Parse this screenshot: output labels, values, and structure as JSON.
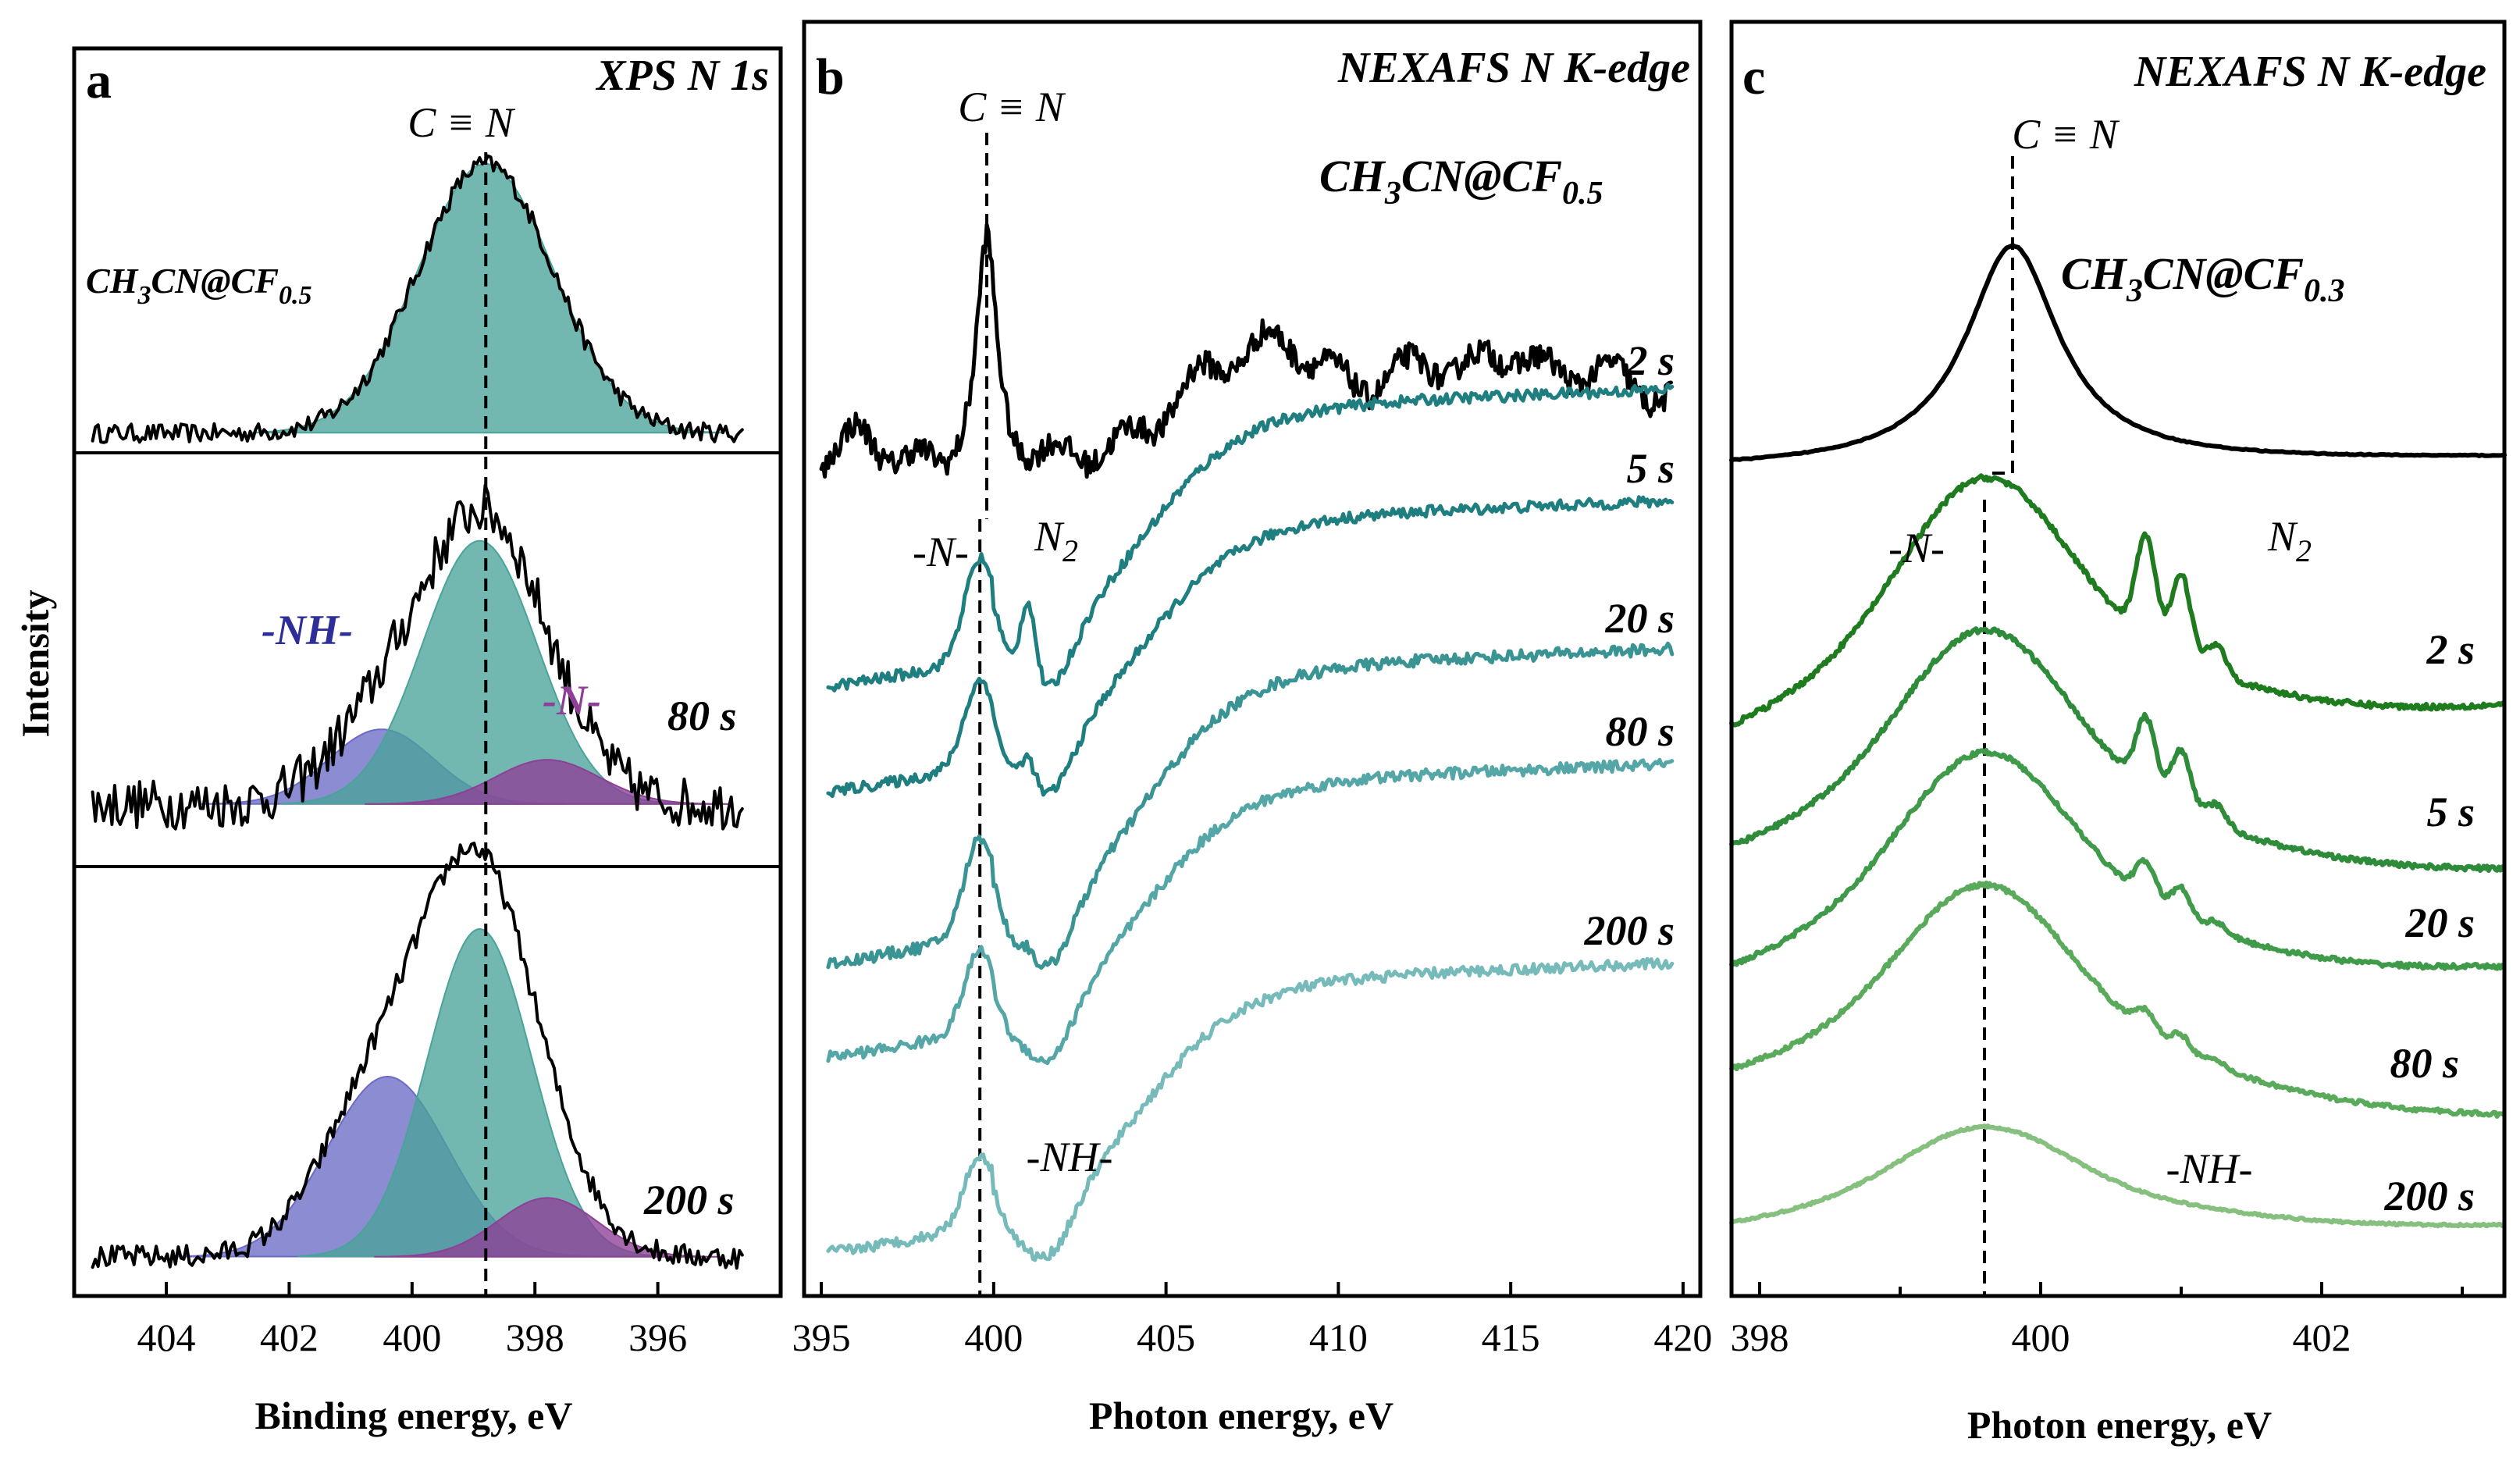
{
  "ylabel": "Intensity",
  "chart_data": [
    {
      "panel": "a",
      "type": "line",
      "title": "XPS N 1s",
      "xlabel": "Binding energy, eV",
      "xlim": [
        405.5,
        394
      ],
      "x_reversed": true,
      "ticks": [
        "404",
        "402",
        "400",
        "398",
        "396"
      ],
      "tick_values": [
        404,
        402,
        400,
        398,
        396
      ],
      "reference_line": {
        "x": 398.8,
        "label": "C ≡ N"
      },
      "subpanels": [
        {
          "label": "CH3CN@CF0.5",
          "label_main": "CH",
          "label_parts": [
            "3",
            "CN@CF",
            "0.5"
          ],
          "components": [
            {
              "name": "C≡N",
              "center": 398.8,
              "height": 1.0,
              "fwhm": 2.6,
              "color": "#4aa39a"
            }
          ]
        },
        {
          "label": "80 s",
          "components": [
            {
              "name": "-NH-",
              "center": 400.5,
              "height": 0.27,
              "fwhm": 2.0,
              "color": "#6b6bc7"
            },
            {
              "name": "C≡N",
              "center": 398.9,
              "height": 0.95,
              "fwhm": 2.2,
              "color": "#4aa39a"
            },
            {
              "name": "-N-",
              "center": 397.8,
              "height": 0.16,
              "fwhm": 2.0,
              "color": "#8e3f96"
            }
          ],
          "annotations": [
            "-NH-",
            "-N-"
          ]
        },
        {
          "label": "200 s",
          "components": [
            {
              "name": "-NH-",
              "center": 400.4,
              "height": 0.55,
              "fwhm": 2.3,
              "color": "#6b6bc7"
            },
            {
              "name": "C≡N",
              "center": 398.9,
              "height": 1.0,
              "fwhm": 2.0,
              "color": "#4aa39a"
            },
            {
              "name": "-N-",
              "center": 397.8,
              "height": 0.18,
              "fwhm": 1.9,
              "color": "#8e3f96"
            }
          ]
        }
      ]
    },
    {
      "panel": "b",
      "type": "line",
      "title": "NEXAFS N K-edge",
      "xlabel": "Photon energy, eV",
      "xlim": [
        394.5,
        420.5
      ],
      "ticks": [
        "395",
        "400",
        "405",
        "410",
        "415",
        "420"
      ],
      "tick_values": [
        395,
        400,
        405,
        410,
        415,
        420
      ],
      "reference_line": {
        "x": 399.8,
        "label": "C ≡ N"
      },
      "reference_line_2": {
        "x": 399.6
      },
      "series": [
        {
          "name": "CH3CN@CF0.5",
          "label_main": "CH",
          "label_parts": [
            "3",
            "CN@CF",
            "0.5"
          ],
          "color": "#000000",
          "kind": "ref"
        },
        {
          "name": "2 s",
          "color": "#1f7f80"
        },
        {
          "name": "5 s",
          "color": "#1f7f80"
        },
        {
          "name": "20 s",
          "color": "#3a9494"
        },
        {
          "name": "80 s",
          "color": "#55a6a6"
        },
        {
          "name": "200 s",
          "color": "#77baba"
        }
      ],
      "annotations": {
        "n": "-N-",
        "n2_main": "N",
        "n2_sub": "2",
        "nh": "-NH-"
      }
    },
    {
      "panel": "c",
      "type": "line",
      "title": "NEXAFS N K-edge",
      "xlabel": "Photon energy, eV",
      "xlim": [
        397.8,
        403.3
      ],
      "ticks": [
        "398",
        "400",
        "402"
      ],
      "tick_values": [
        398,
        400,
        402
      ],
      "reference_line": {
        "x": 399.8,
        "label": "C ≡ N"
      },
      "reference_line_2": {
        "x": 399.6
      },
      "series": [
        {
          "name": "CH3CN@CF0.3",
          "label_main": "CH",
          "label_parts": [
            "3",
            "CN@CF",
            "0.3"
          ],
          "color": "#000000",
          "kind": "ref"
        },
        {
          "name": "2 s",
          "color": "#1e7b1e"
        },
        {
          "name": "5 s",
          "color": "#2e8b3a"
        },
        {
          "name": "20 s",
          "color": "#3f9a4a"
        },
        {
          "name": "80 s",
          "color": "#5aaa5c"
        },
        {
          "name": "200 s",
          "color": "#86c07e"
        }
      ],
      "annotations": {
        "n": "-N-",
        "n2_main": "N",
        "n2_sub": "2",
        "nh": "-NH-"
      }
    }
  ]
}
